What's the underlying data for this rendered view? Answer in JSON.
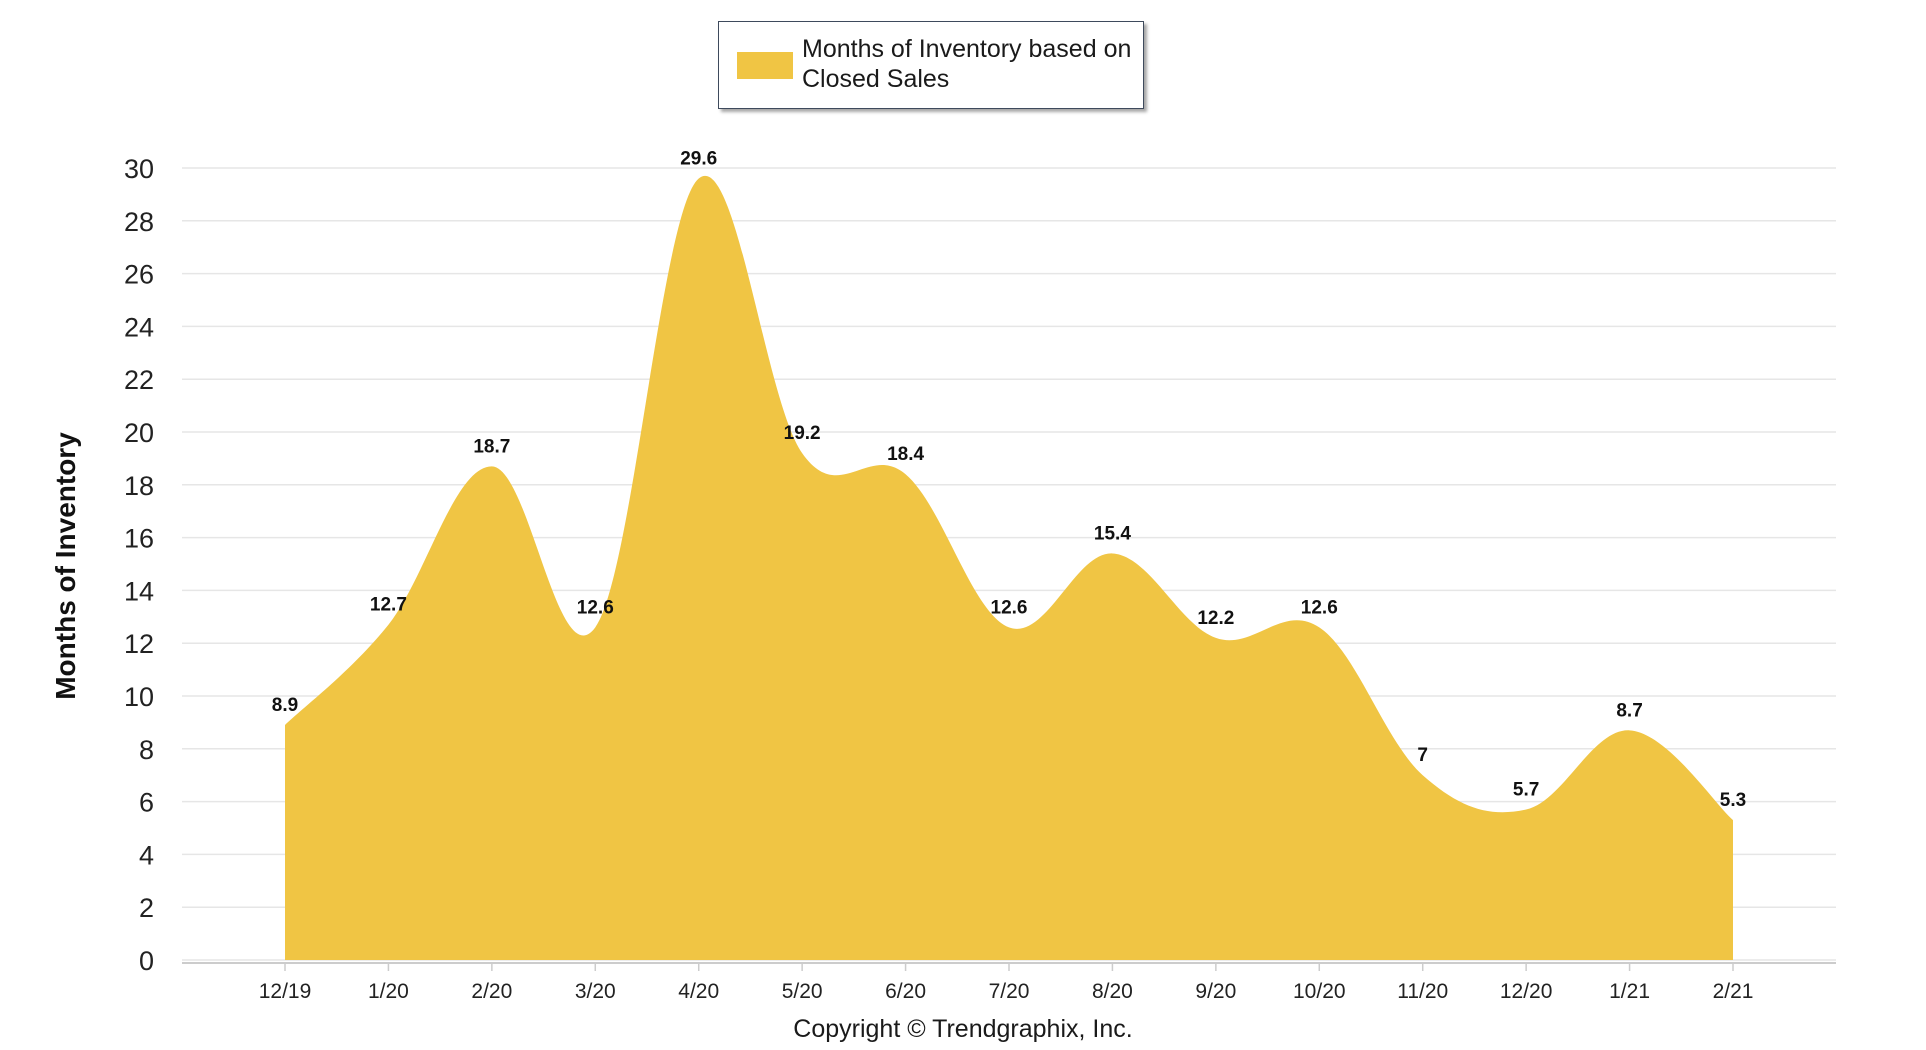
{
  "legend": {
    "label": "Months of Inventory based on Closed Sales"
  },
  "copyright": "Copyright © Trendgraphix, Inc.",
  "colors": {
    "fill": "#f0c544",
    "grid": "#e6e6e6",
    "axis": "#cccccc"
  },
  "chart_data": {
    "type": "area",
    "title": "",
    "xlabel": "",
    "ylabel": "Months of Inventory",
    "categories": [
      "12/19",
      "1/20",
      "2/20",
      "3/20",
      "4/20",
      "5/20",
      "6/20",
      "7/20",
      "8/20",
      "9/20",
      "10/20",
      "11/20",
      "12/20",
      "1/21",
      "2/21"
    ],
    "series": [
      {
        "name": "Months of Inventory based on Closed Sales",
        "values": [
          8.9,
          12.7,
          18.7,
          12.6,
          29.6,
          19.2,
          18.4,
          12.6,
          15.4,
          12.2,
          12.6,
          7,
          5.7,
          8.7,
          5.3
        ],
        "data_labels": [
          "8.9",
          "12.7",
          "18.7",
          "12.6",
          "29.6",
          "19.2",
          "18.4",
          "12.6",
          "15.4",
          "12.2",
          "12.6",
          "7",
          "5.7",
          "8.7",
          "5.3"
        ]
      }
    ],
    "yticks": [
      0,
      2,
      4,
      6,
      8,
      10,
      12,
      14,
      16,
      18,
      20,
      22,
      24,
      26,
      28,
      30
    ],
    "ylim": [
      0,
      30
    ],
    "grid": true,
    "legend_position": "top-center",
    "smooth": true
  }
}
